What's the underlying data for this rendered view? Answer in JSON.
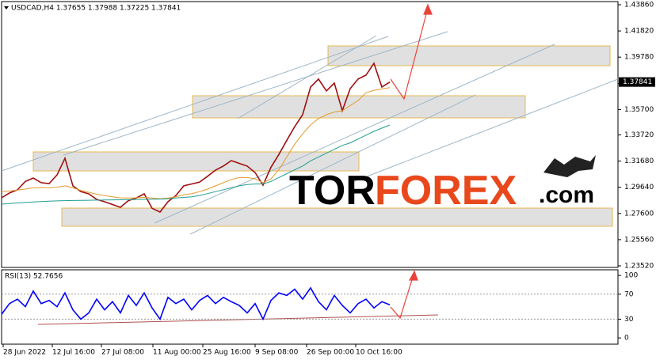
{
  "chart_data": [
    {
      "type": "line",
      "title": "USDCAD,H4 1.37655 1.37988 1.37225 1.37841",
      "last_price": 1.37841,
      "watermark": {
        "parts": [
          "TOR",
          "FOREX",
          ".com"
        ]
      },
      "grid": false,
      "xlim": [
        0,
        778
      ],
      "ylim": [
        1.23397,
        1.44107
      ],
      "yticks": [
        {
          "value": 1.4386,
          "label": "1.43860"
        },
        {
          "value": 1.4182,
          "label": "1.41820"
        },
        {
          "value": 1.3978,
          "label": "1.39780"
        },
        {
          "value": 1.3772,
          "label": "1.37720"
        },
        {
          "value": 1.357,
          "label": "1.35700"
        },
        {
          "value": 1.3372,
          "label": "1.33720"
        },
        {
          "value": 1.3168,
          "label": "1.31680"
        },
        {
          "value": 1.2964,
          "label": "1.29640"
        },
        {
          "value": 1.276,
          "label": "1.27600"
        },
        {
          "value": 1.2556,
          "label": "1.25560"
        },
        {
          "value": 1.2352,
          "label": "1.23520"
        }
      ],
      "x": [
        0,
        10,
        20,
        30,
        40,
        50,
        60,
        70,
        80,
        90,
        100,
        110,
        120,
        130,
        140,
        150,
        160,
        170,
        180,
        190,
        200,
        210,
        220,
        230,
        240,
        250,
        260,
        270,
        280,
        290,
        300,
        310,
        320,
        330,
        340,
        350,
        360,
        370,
        380,
        390,
        400,
        410,
        420,
        430,
        440,
        450,
        460,
        470,
        480,
        490
      ],
      "series": [
        {
          "color": "#a01010",
          "values": [
            1.2882,
            1.292,
            1.2944,
            1.301,
            1.3036,
            1.3,
            1.2993,
            1.306,
            1.319,
            1.2975,
            1.293,
            1.2913,
            1.287,
            1.2851,
            1.283,
            1.2808,
            1.286,
            1.288,
            1.2913,
            1.28,
            1.2771,
            1.2851,
            1.29,
            1.2975,
            1.299,
            1.3005,
            1.305,
            1.3098,
            1.313,
            1.3172,
            1.315,
            1.3129,
            1.3079,
            1.298,
            1.312,
            1.322,
            1.333,
            1.3437,
            1.353,
            1.3745,
            1.3807,
            1.3715,
            1.3776,
            1.356,
            1.3733,
            1.3807,
            1.3838,
            1.393,
            1.3745,
            1.3784
          ]
        },
        {
          "color": "#e39a2a",
          "values": [
            1.293,
            1.2935,
            1.2942,
            1.295,
            1.296,
            1.2962,
            1.296,
            1.2965,
            1.2975,
            1.296,
            1.294,
            1.2925,
            1.291,
            1.29,
            1.289,
            1.2882,
            1.288,
            1.2882,
            1.2885,
            1.288,
            1.2875,
            1.288,
            1.289,
            1.2905,
            1.2915,
            1.293,
            1.295,
            1.2975,
            1.3,
            1.3025,
            1.304,
            1.304,
            1.303,
            1.3,
            1.303,
            1.31,
            1.32,
            1.33,
            1.338,
            1.345,
            1.35,
            1.353,
            1.355,
            1.356,
            1.36,
            1.364,
            1.37,
            1.372,
            1.373,
            1.374
          ]
        },
        {
          "color": "#1f9e8f",
          "values": [
            1.2833,
            1.2838,
            1.2842,
            1.2846,
            1.285,
            1.2853,
            1.2856,
            1.2858,
            1.286,
            1.2861,
            1.2862,
            1.2863,
            1.2864,
            1.2865,
            1.2866,
            1.2867,
            1.2868,
            1.2869,
            1.287,
            1.2871,
            1.2872,
            1.2875,
            1.288,
            1.2885,
            1.289,
            1.29,
            1.2915,
            1.293,
            1.2945,
            1.296,
            1.2975,
            1.2985,
            1.299,
            1.299,
            1.301,
            1.304,
            1.307,
            1.31,
            1.313,
            1.317,
            1.32,
            1.323,
            1.326,
            1.329,
            1.331,
            1.334,
            1.337,
            1.34,
            1.3425,
            1.3449
          ]
        }
      ]
    },
    {
      "type": "line",
      "title": "RSI(13) 52.7656",
      "grid": false,
      "xlim": [
        0,
        778
      ],
      "ylim": [
        -10,
        109
      ],
      "yticks": [
        0,
        30,
        70,
        100
      ],
      "levels": [
        30,
        70
      ],
      "xticks": [
        {
          "value": 2,
          "label": "28 Jun 2022"
        },
        {
          "value": 64,
          "label": "12 Jul 16:00"
        },
        {
          "value": 126,
          "label": "27 Jul 08:00"
        },
        {
          "value": 191,
          "label": "11 Aug 00:00"
        },
        {
          "value": 254,
          "label": "25 Aug 16:00"
        },
        {
          "value": 320,
          "label": "9 Sep 08:00"
        },
        {
          "value": 385,
          "label": "26 Sep 00:00"
        },
        {
          "value": 447,
          "label": "10 Oct 16:00"
        }
      ],
      "x": [
        0,
        10,
        20,
        30,
        40,
        50,
        60,
        70,
        80,
        90,
        100,
        110,
        120,
        130,
        140,
        150,
        160,
        170,
        180,
        190,
        200,
        210,
        220,
        230,
        240,
        250,
        260,
        270,
        280,
        290,
        300,
        310,
        320,
        330,
        340,
        350,
        360,
        370,
        380,
        390,
        400,
        410,
        420,
        430,
        440,
        450,
        460,
        470,
        480,
        490
      ],
      "series": [
        {
          "color": "#0000ff",
          "values": [
            38,
            55,
            62,
            50,
            75,
            55,
            60,
            50,
            72,
            45,
            30,
            40,
            62,
            45,
            58,
            40,
            68,
            52,
            72,
            48,
            30,
            65,
            55,
            62,
            45,
            60,
            68,
            55,
            65,
            58,
            52,
            40,
            55,
            30,
            60,
            72,
            68,
            78,
            62,
            80,
            58,
            45,
            68,
            52,
            40,
            55,
            62,
            48,
            58,
            53
          ]
        }
      ]
    }
  ]
}
